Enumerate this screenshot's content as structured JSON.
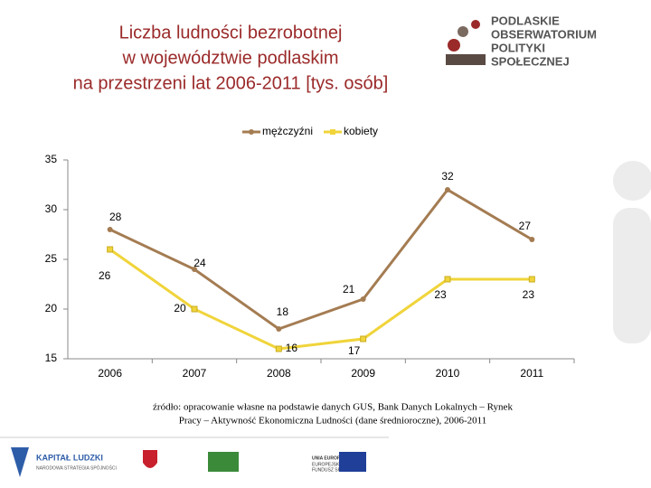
{
  "chart_data": {
    "type": "line",
    "title": [
      "Liczba ludności bezrobotnej",
      "w województwie podlaskim",
      "na przestrzeni lat 2006-2011 [tys. osób]"
    ],
    "categories": [
      "2006",
      "2007",
      "2008",
      "2009",
      "2010",
      "2011"
    ],
    "series": [
      {
        "name": "mężczyźni",
        "color": "#a47c52",
        "values": [
          28,
          24,
          18,
          21,
          32,
          27
        ]
      },
      {
        "name": "kobiety",
        "color": "#f0d43a",
        "values": [
          26,
          20,
          16,
          17,
          23,
          23
        ]
      }
    ],
    "ylim": [
      15,
      35
    ],
    "yticks": [
      15,
      20,
      25,
      30,
      35
    ],
    "grid": false,
    "legend": "top",
    "source": [
      "źródło: opracowanie własne na podstawie danych GUS, Bank Danych Lokalnych – Rynek",
      "Pracy – Aktywność Ekonomiczna Ludności (dane średnioroczne), 2006-2011"
    ]
  },
  "logos": {
    "observatory": [
      "PODLASKIE",
      "OBSERWATORIUM",
      "POLITYKI",
      "SPOŁECZNEJ"
    ],
    "kapital": [
      "KAPITAŁ LUDZKI",
      "NARODOWA STRATEGIA SPÓJNOŚCI"
    ],
    "eu": [
      "UNIA EUROPEJSKA",
      "EUROPEJSKI",
      "FUNDUSZ SPOŁECZNY"
    ]
  }
}
